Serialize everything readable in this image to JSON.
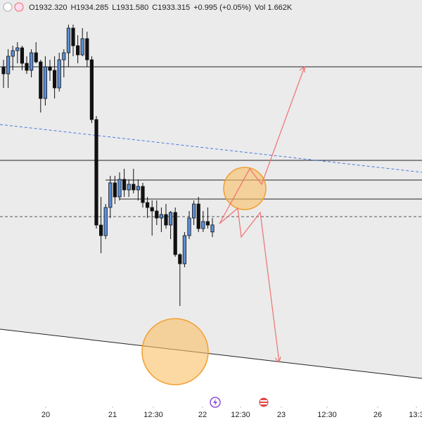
{
  "chart_data": {
    "type": "candlestick",
    "legend_texts": [
      "O1932.320",
      "H1934.285",
      "L1931.580",
      "C1933.315",
      "+0.995 (+0.05%)",
      "Vol 1.662K"
    ],
    "up_color": "#5b8fd8",
    "down_color": "#111111",
    "ylim": [
      1905.3,
      1965.3
    ],
    "xlim": [
      -0.758,
      90.15
    ],
    "xticks": [
      {
        "value": 9.09,
        "label": "20"
      },
      {
        "value": 23.48,
        "label": "21"
      },
      {
        "value": 32.27,
        "label": "12:30"
      },
      {
        "value": 42.88,
        "label": "22"
      },
      {
        "value": 51.06,
        "label": "12:30"
      },
      {
        "value": 59.85,
        "label": "23"
      },
      {
        "value": 69.7,
        "label": "12:30"
      },
      {
        "value": 80.6,
        "label": "26"
      },
      {
        "value": 88.94,
        "label": "13:3"
      }
    ],
    "open": [
      1955.8,
      1954.8,
      1957.3,
      1958.1,
      1958.5,
      1956.3,
      1955.3,
      1957.8,
      1956.5,
      1951.3,
      1955.8,
      1955.3,
      1952.8,
      1956.8,
      1957.8,
      1961.3,
      1958.8,
      1957.5,
      1959.8,
      1956.8,
      1948.3,
      1933.3,
      1931.8,
      1935.8,
      1939.3,
      1937.3,
      1939.8,
      1938.3,
      1939.1,
      1938.3,
      1938.8,
      1936.5,
      1935.8,
      1935.3,
      1934.3,
      1934.8,
      1933.3,
      1935.1,
      1929.1,
      1927.8,
      1931.8,
      1934.3,
      1936.3,
      1932.8,
      1933.8,
      1932.32
    ],
    "high": [
      1956.8,
      1958.3,
      1958.8,
      1959.3,
      1958.8,
      1957.3,
      1958.3,
      1959.3,
      1956.8,
      1957.3,
      1956.8,
      1957.3,
      1957.8,
      1958.3,
      1961.8,
      1961.8,
      1960.3,
      1961.3,
      1960.8,
      1957.3,
      1948.8,
      1937.3,
      1936.3,
      1940.3,
      1940.3,
      1940.8,
      1941.3,
      1939.8,
      1941.3,
      1939.8,
      1939.3,
      1937.3,
      1936.8,
      1936.8,
      1935.8,
      1936.3,
      1935.3,
      1935.8,
      1929.3,
      1932.3,
      1935.3,
      1936.8,
      1937.3,
      1935.3,
      1935.8,
      1934.285
    ],
    "low": [
      1952.8,
      1952.8,
      1955.3,
      1956.3,
      1955.3,
      1954.8,
      1954.3,
      1956.3,
      1949.3,
      1950.3,
      1953.8,
      1951.3,
      1952.3,
      1954.3,
      1955.8,
      1957.3,
      1956.3,
      1957.3,
      1955.8,
      1947.8,
      1932.8,
      1929.3,
      1931.3,
      1934.3,
      1936.3,
      1936.8,
      1937.3,
      1937.3,
      1937.8,
      1936.8,
      1935.8,
      1934.3,
      1931.8,
      1933.3,
      1932.3,
      1932.8,
      1931.3,
      1928.8,
      1921.8,
      1927.3,
      1931.3,
      1933.3,
      1932.3,
      1932.3,
      1932.8,
      1931.58
    ],
    "close": [
      1954.8,
      1957.3,
      1958.1,
      1958.5,
      1956.3,
      1955.3,
      1957.8,
      1956.5,
      1951.3,
      1955.8,
      1955.3,
      1952.8,
      1956.8,
      1957.8,
      1961.3,
      1958.8,
      1957.5,
      1959.8,
      1956.8,
      1948.3,
      1933.3,
      1931.8,
      1935.8,
      1939.3,
      1937.3,
      1939.8,
      1938.3,
      1939.1,
      1938.3,
      1938.8,
      1936.5,
      1935.8,
      1935.3,
      1934.3,
      1934.8,
      1933.3,
      1935.1,
      1929.1,
      1927.8,
      1931.8,
      1934.3,
      1936.3,
      1932.8,
      1933.8,
      1933.3,
      1933.315
    ]
  }
}
